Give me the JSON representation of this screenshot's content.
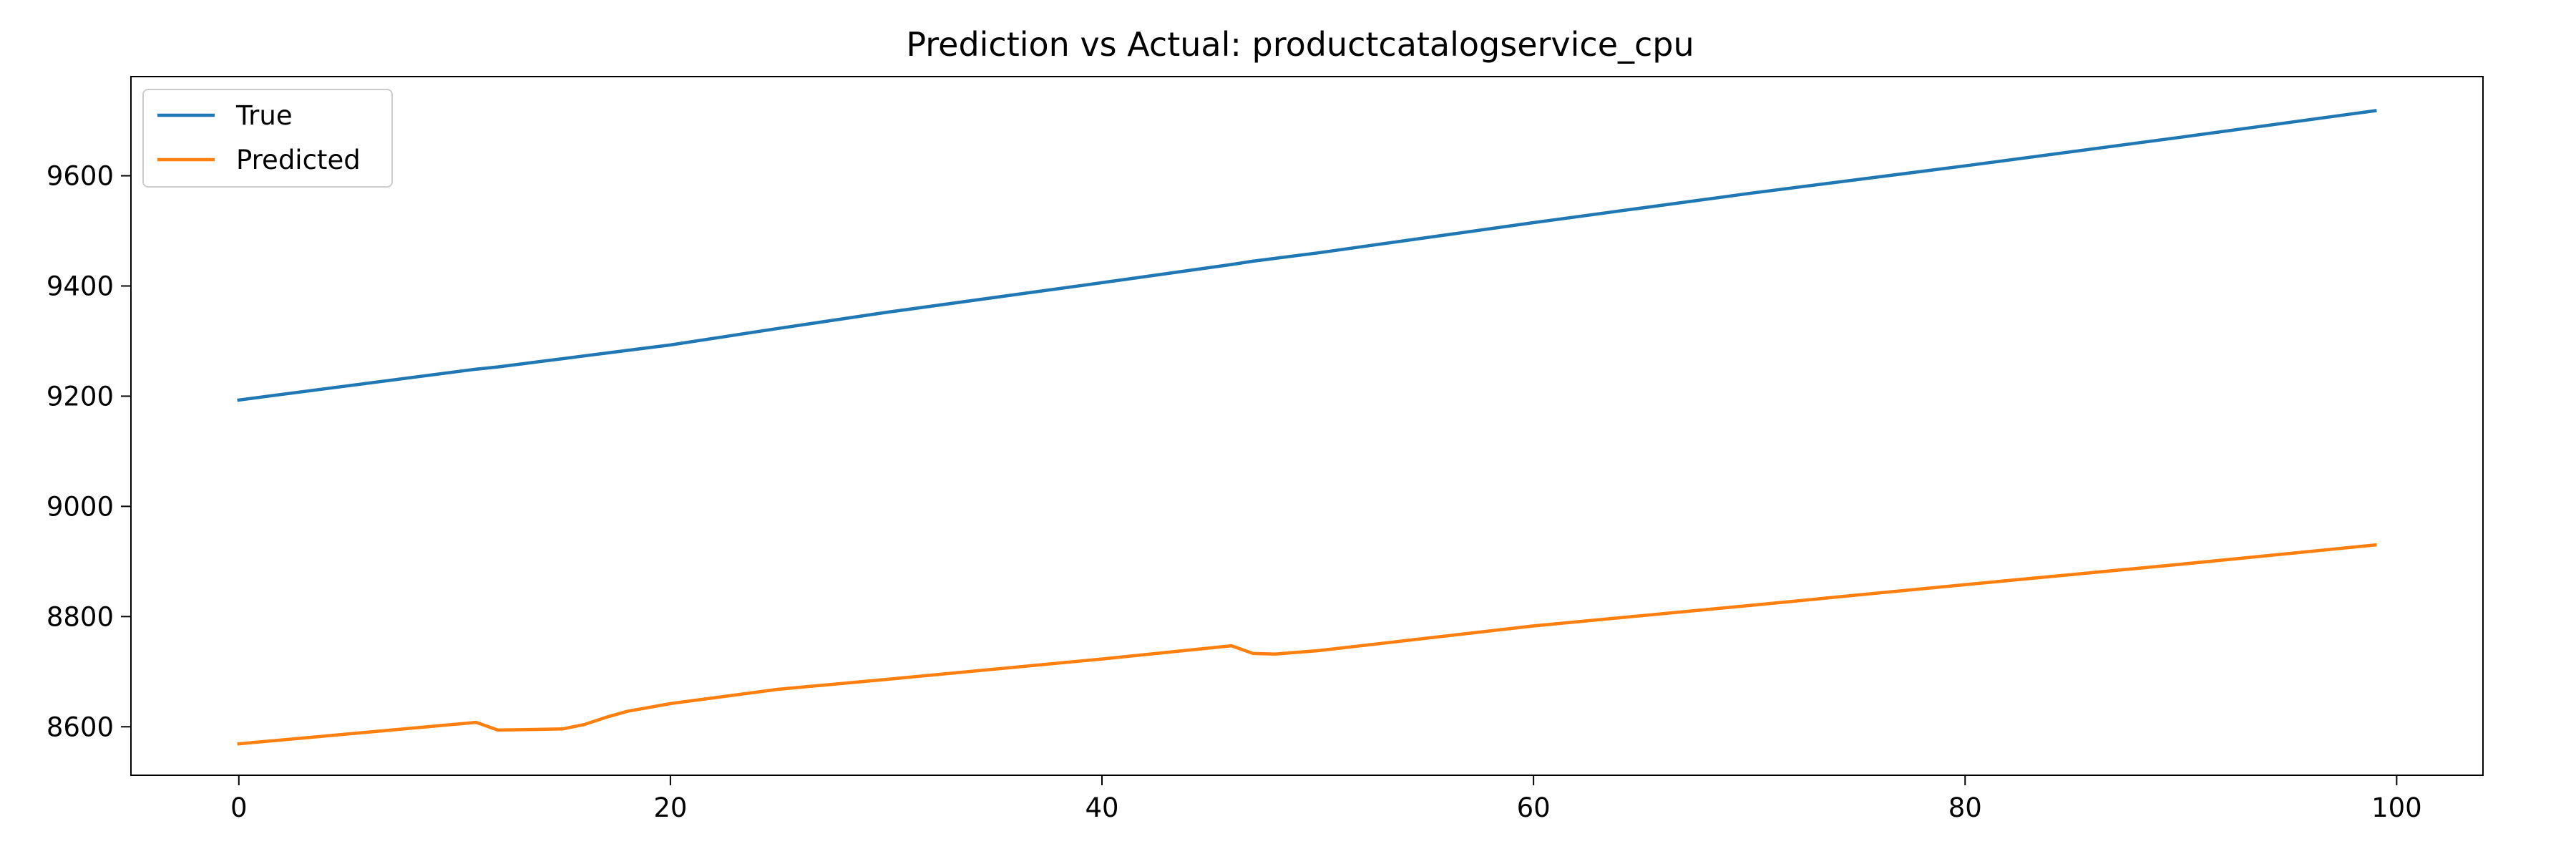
{
  "chart_data": {
    "type": "line",
    "title": "Prediction vs Actual: productcatalogservice_cpu",
    "xlabel": "",
    "ylabel": "",
    "xlim": [
      -5,
      104
    ],
    "ylim": [
      8512,
      9780
    ],
    "x_ticks": [
      0,
      20,
      40,
      60,
      80,
      100
    ],
    "y_ticks": [
      8600,
      8800,
      9000,
      9200,
      9400,
      9600
    ],
    "grid": false,
    "legend_position": "top-left",
    "x": [
      0,
      11,
      12,
      15,
      16,
      17,
      18,
      20,
      25,
      30,
      40,
      46,
      47,
      48,
      50,
      60,
      70,
      80,
      90,
      99
    ],
    "series": [
      {
        "name": "True",
        "color": "#1f77b4",
        "values": [
          9193,
          9249,
          9253,
          9268,
          9273,
          9278,
          9283,
          9293,
          9323,
          9352,
          9406,
          9439,
          9445,
          9450,
          9460,
          9515,
          9568,
          9618,
          9670,
          9718
        ]
      },
      {
        "name": "Predicted",
        "color": "#ff7f0e",
        "values": [
          8569,
          8608,
          8594,
          8596,
          8604,
          8617,
          8628,
          8642,
          8668,
          8686,
          8723,
          8747,
          8733,
          8732,
          8738,
          8783,
          8820,
          8858,
          8895,
          8930
        ]
      }
    ]
  }
}
